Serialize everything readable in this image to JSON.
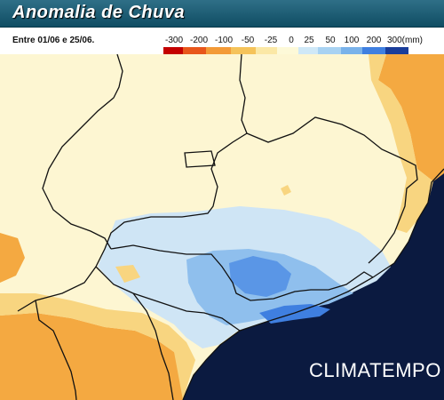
{
  "title": "Anomalia de Chuva",
  "period": "Entre 01/06 e 25/06.",
  "legend": {
    "labels": [
      "-300",
      "-200",
      "-100",
      "-50",
      "-25",
      "0",
      "25",
      "50",
      "100",
      "200",
      "300(mm)"
    ],
    "colors": [
      "#c40000",
      "#e8561b",
      "#f39a37",
      "#f5c35a",
      "#fbe8a6",
      "#fdf9d8",
      "#cfe8f7",
      "#a8d2f2",
      "#79b2ea",
      "#3f7fe0",
      "#1a3d9a"
    ]
  },
  "logo": "CLIMATEMPO",
  "colors": {
    "title_bar": "#1f5f77",
    "ocean": "#0b1a40",
    "neutral": "#fdf6d2",
    "light_blue": "#cfe5f5",
    "blue": "#8fbfed",
    "dark_blue": "#3f7fe0",
    "orange": "#f4a941",
    "yellow": "#f8d580"
  }
}
